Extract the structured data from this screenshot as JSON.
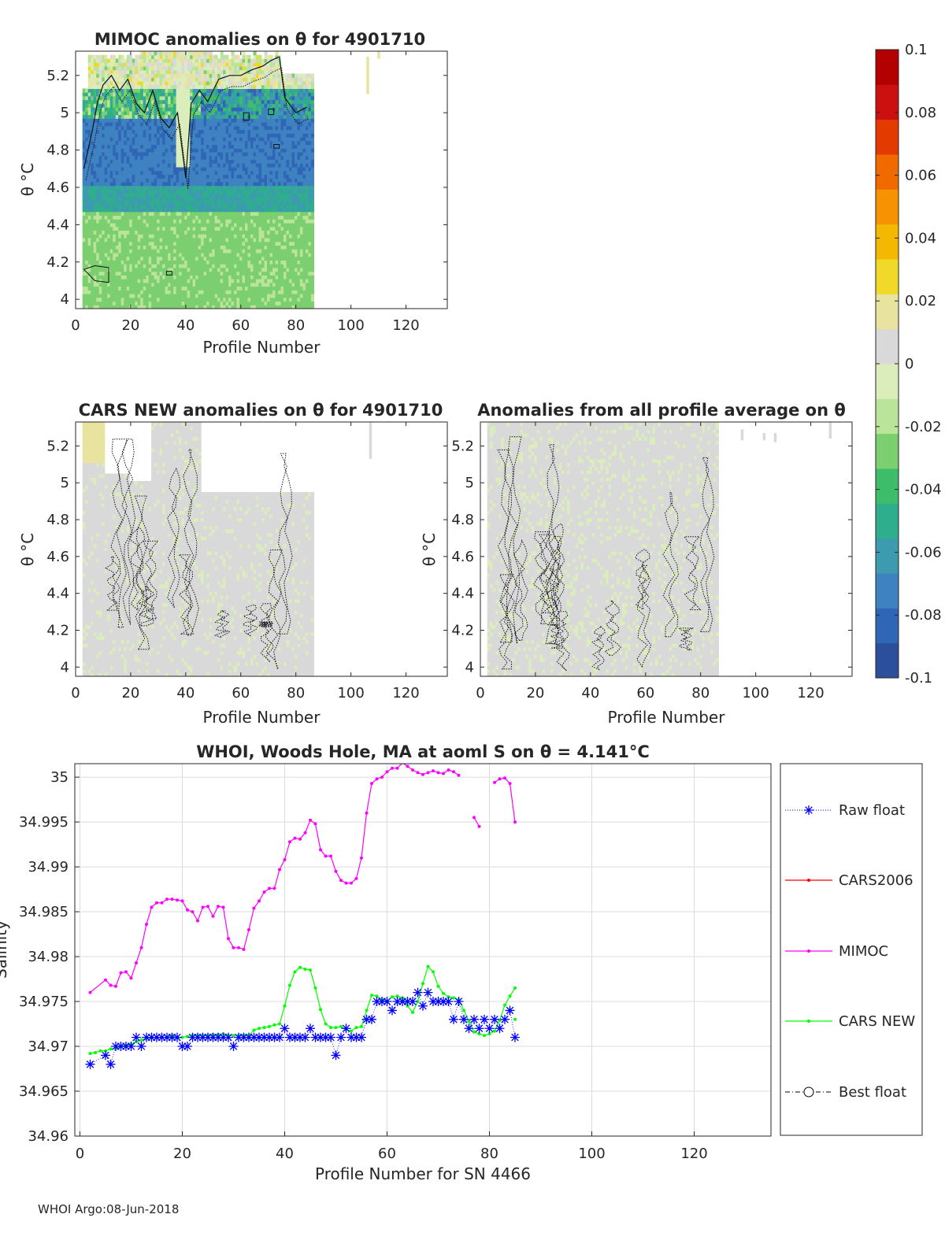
{
  "footer": "WHOI Argo:08-Jun-2018",
  "colors": {
    "raw_float": "#0000ff",
    "cars2006": "#ff0000",
    "mimoc": "#ff00ff",
    "cars_new": "#00ff00",
    "best_float": "#000000",
    "colormap": [
      "#2b4f9a",
      "#2f66b5",
      "#3f82c2",
      "#3d9bb0",
      "#2fae8d",
      "#3dbd6a",
      "#7ccf6e",
      "#b9e49a",
      "#dcedbc",
      "#d9d9d9",
      "#e8e4a0",
      "#f1d92a",
      "#f5b800",
      "#f59400",
      "#f06a00",
      "#e33a00",
      "#cc1010",
      "#b30000"
    ]
  },
  "chart_data": [
    {
      "type": "heatmap",
      "title": "MIMOC anomalies on θ  for 4901710",
      "xlabel": "Profile Number",
      "ylabel": "θ °C",
      "xlim": [
        0,
        135
      ],
      "ylim": [
        3.95,
        5.33
      ],
      "xticks": [
        "0",
        "20",
        "40",
        "60",
        "80",
        "100",
        "120"
      ],
      "yticks": [
        "4",
        "4.2",
        "4.4",
        "4.6",
        "4.8",
        "5",
        "5.2"
      ],
      "field": "mimoc",
      "profiles": [
        3,
        86
      ]
    },
    {
      "type": "heatmap",
      "title": "CARS NEW anomalies on θ for 4901710",
      "xlabel": "Profile Number",
      "ylabel": "θ °C",
      "xlim": [
        0,
        135
      ],
      "ylim": [
        3.95,
        5.33
      ],
      "xticks": [
        "0",
        "20",
        "40",
        "60",
        "80",
        "100",
        "120"
      ],
      "yticks": [
        "4",
        "4.2",
        "4.4",
        "4.6",
        "4.8",
        "5",
        "5.2"
      ],
      "field": "cars",
      "profiles": [
        3,
        86
      ]
    },
    {
      "type": "heatmap",
      "title": "Anomalies from all profile average on θ",
      "xlabel": "Profile Number",
      "ylabel": "θ °C",
      "xlim": [
        0,
        135
      ],
      "ylim": [
        3.95,
        5.33
      ],
      "xticks": [
        "0",
        "20",
        "40",
        "60",
        "80",
        "100",
        "120"
      ],
      "yticks": [
        "4",
        "4.2",
        "4.4",
        "4.6",
        "4.8",
        "5",
        "5.2"
      ],
      "field": "avg",
      "profiles": [
        3,
        86
      ]
    },
    {
      "type": "heatmap",
      "title": "",
      "role": "colorbar",
      "range": [
        -0.1,
        0.1
      ],
      "ticks": [
        "0.1",
        "0.08",
        "0.06",
        "0.04",
        "0.02",
        "0",
        "-0.02",
        "-0.04",
        "-0.06",
        "-0.08",
        "-0.1"
      ]
    },
    {
      "type": "line",
      "title": "WHOI, Woods Hole, MA at aoml S on θ = 4.141°C",
      "xlabel": "Profile Number for SN 4466",
      "ylabel": "Salinity",
      "xlim": [
        -1,
        135
      ],
      "ylim": [
        34.96,
        35.0015
      ],
      "xticks": [
        "0",
        "20",
        "40",
        "60",
        "80",
        "100",
        "120"
      ],
      "yticks": [
        "35",
        "34.995",
        "34.99",
        "34.985",
        "34.98",
        "34.975",
        "34.97",
        "34.965",
        "34.96"
      ],
      "grid": true,
      "legend_position": "right, outside",
      "legend": [
        "Raw float",
        "CARS2006",
        "MIMOC",
        "CARS NEW",
        "Best float"
      ],
      "series": [
        {
          "name": "MIMOC",
          "style": "line-dot",
          "segments": [
            {
              "x": [
                2,
                5,
                6,
                7,
                8,
                9,
                10,
                11,
                12,
                13,
                14,
                15,
                16,
                17,
                18,
                19,
                20,
                21,
                22,
                23,
                24,
                25,
                26,
                27,
                28,
                29,
                30,
                31,
                32,
                33,
                34,
                35,
                36,
                37,
                38,
                39,
                40,
                41,
                42,
                43,
                44,
                45,
                46,
                47,
                48,
                49,
                50,
                51,
                52,
                53,
                54,
                55,
                56,
                57,
                58,
                59,
                60,
                61,
                62,
                63,
                64,
                65,
                66,
                67,
                68,
                69,
                70,
                71,
                72,
                73,
                74
              ],
              "y": [
                34.976,
                34.9774,
                34.9768,
                34.9767,
                34.9782,
                34.9783,
                34.9776,
                34.9793,
                34.981,
                34.9836,
                34.9855,
                34.986,
                34.986,
                34.9864,
                34.9864,
                34.9863,
                34.9862,
                34.9852,
                34.985,
                34.984,
                34.9855,
                34.9856,
                34.9845,
                34.9856,
                34.9855,
                34.982,
                34.981,
                34.981,
                34.9808,
                34.983,
                34.9854,
                34.9862,
                34.9872,
                34.9876,
                34.9876,
                34.9897,
                34.9908,
                34.9928,
                34.9932,
                34.9931,
                34.9938,
                34.9952,
                34.9948,
                34.9919,
                34.9912,
                34.9912,
                34.9895,
                34.9885,
                34.9882,
                34.9882,
                34.9887,
                34.991,
                34.996,
                34.9993,
                34.9998,
                35.0,
                35.0006,
                35.001,
                35.001,
                35.0016,
                35.0012,
                35.0008,
                35.0005,
                35.0003,
                35.0005,
                35.0007,
                35.0005,
                35.0004,
                35.0008,
                35.0006,
                35.0002
              ]
            },
            {
              "x": [
                77,
                78
              ],
              "y": [
                34.9955,
                34.9945
              ]
            },
            {
              "x": [
                81,
                82,
                83,
                84,
                85
              ],
              "y": [
                34.9994,
                34.9998,
                34.9999,
                34.9993,
                34.995
              ]
            }
          ]
        },
        {
          "name": "CARS NEW",
          "style": "line-dot",
          "segments": [
            {
              "x": [
                2,
                3,
                4,
                5,
                6,
                7,
                8,
                9,
                10,
                11,
                12,
                13,
                14,
                15,
                16,
                17,
                18,
                19,
                20,
                21,
                22,
                23,
                24,
                25,
                26,
                27,
                28,
                29,
                30,
                31,
                32,
                33,
                34,
                35,
                36,
                37,
                38,
                39,
                40,
                41,
                42,
                43,
                44,
                45,
                46,
                47,
                48,
                49,
                50,
                51,
                52,
                53,
                54,
                55,
                56,
                57,
                58,
                59,
                60,
                61,
                62,
                63,
                64,
                65,
                66,
                67,
                68,
                69,
                70,
                71,
                72,
                73,
                74,
                75,
                76,
                77,
                78,
                79,
                80,
                81,
                82,
                83,
                84,
                85
              ],
              "y": [
                34.9692,
                34.9693,
                34.9695,
                34.9695,
                34.9697,
                34.9698,
                34.97,
                34.9701,
                34.9702,
                34.9705,
                34.9707,
                34.9709,
                34.971,
                34.971,
                34.971,
                34.971,
                34.9712,
                34.971,
                34.971,
                34.9711,
                34.9712,
                34.9712,
                34.9712,
                34.9712,
                34.9713,
                34.9713,
                34.9714,
                34.9712,
                34.9712,
                34.9712,
                34.9712,
                34.9712,
                34.9718,
                34.972,
                34.9721,
                34.9722,
                34.9724,
                34.9725,
                34.9745,
                34.9768,
                34.9783,
                34.9788,
                34.9786,
                34.9785,
                34.9765,
                34.9741,
                34.9725,
                34.9721,
                34.9721,
                34.9722,
                34.9719,
                34.9717,
                34.9721,
                34.9722,
                34.974,
                34.9757,
                34.9756,
                34.9752,
                34.975,
                34.9755,
                34.9756,
                34.9754,
                34.9745,
                34.9738,
                34.975,
                34.977,
                34.9789,
                34.9783,
                34.9767,
                34.9759,
                34.9755,
                34.9754,
                34.9752,
                34.974,
                34.9728,
                34.9716,
                34.9714,
                34.9712,
                34.9714,
                34.9717,
                34.9729,
                34.9746,
                34.9756,
                34.9765
              ]
            },
            {
              "x": [
                85
              ],
              "y": [
                34.973
              ]
            }
          ]
        },
        {
          "name": "Raw float",
          "style": "dotted-star",
          "x": [
            2,
            5,
            6,
            7,
            8,
            9,
            10,
            11,
            12,
            13,
            14,
            15,
            16,
            17,
            18,
            19,
            20,
            21,
            22,
            23,
            24,
            25,
            26,
            27,
            28,
            29,
            30,
            31,
            32,
            33,
            34,
            35,
            36,
            37,
            38,
            39,
            40,
            41,
            42,
            43,
            44,
            45,
            46,
            47,
            48,
            49,
            50,
            51,
            52,
            53,
            54,
            55,
            56,
            57,
            58,
            59,
            60,
            61,
            62,
            63,
            64,
            65,
            66,
            67,
            68,
            69,
            70,
            71,
            72,
            73,
            74,
            75,
            76,
            77,
            78,
            79,
            80,
            81,
            82,
            83,
            84,
            85
          ],
          "y": [
            34.968,
            34.969,
            34.968,
            34.97,
            34.97,
            34.97,
            34.97,
            34.971,
            34.97,
            34.971,
            34.971,
            34.971,
            34.971,
            34.971,
            34.971,
            34.971,
            34.97,
            34.97,
            34.971,
            34.971,
            34.971,
            34.971,
            34.971,
            34.971,
            34.971,
            34.971,
            34.97,
            34.971,
            34.971,
            34.971,
            34.971,
            34.971,
            34.971,
            34.971,
            34.971,
            34.971,
            34.972,
            34.971,
            34.971,
            34.971,
            34.971,
            34.972,
            34.971,
            34.971,
            34.971,
            34.971,
            34.969,
            34.971,
            34.972,
            34.971,
            34.971,
            34.971,
            34.973,
            34.973,
            34.975,
            34.975,
            34.975,
            34.974,
            34.975,
            34.975,
            34.975,
            34.975,
            34.976,
            34.9745,
            34.976,
            34.975,
            34.975,
            34.975,
            34.975,
            34.973,
            34.975,
            34.973,
            34.972,
            34.973,
            34.972,
            34.973,
            34.972,
            34.973,
            34.972,
            34.973,
            34.974,
            34.971
          ]
        },
        {
          "name": "CARS2006",
          "style": "line-dot",
          "x": [],
          "y": []
        },
        {
          "name": "Best float",
          "style": "dashdot-circle",
          "x": [],
          "y": []
        }
      ]
    }
  ]
}
